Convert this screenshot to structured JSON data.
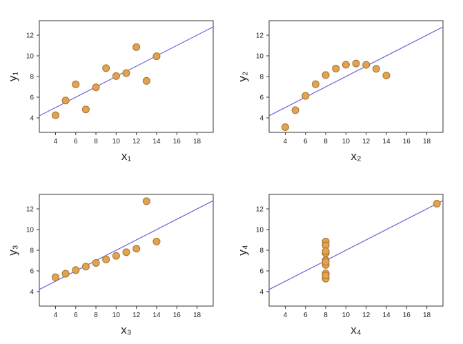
{
  "chart_data": [
    {
      "type": "scatter",
      "xlabel": "x₁",
      "ylabel": "y₁",
      "x": [
        10,
        8,
        13,
        9,
        11,
        14,
        6,
        4,
        12,
        7,
        5
      ],
      "y": [
        8.04,
        6.95,
        7.58,
        8.81,
        8.33,
        9.96,
        7.24,
        4.26,
        10.84,
        4.82,
        5.68
      ],
      "xlim": [
        2.4,
        19.6
      ],
      "ylim": [
        2.6,
        13.4
      ],
      "xticks": [
        4,
        6,
        8,
        10,
        12,
        14,
        16,
        18
      ],
      "yticks": [
        4,
        6,
        8,
        10,
        12
      ],
      "color": "#e0a352",
      "line_color": "#6b63d8"
    },
    {
      "type": "scatter",
      "xlabel": "x₂",
      "ylabel": "y₂",
      "x": [
        10,
        8,
        13,
        9,
        11,
        14,
        6,
        4,
        12,
        7,
        5
      ],
      "y": [
        9.14,
        8.14,
        8.74,
        8.77,
        9.26,
        8.1,
        6.13,
        3.1,
        9.13,
        7.26,
        4.74
      ],
      "xlim": [
        2.4,
        19.6
      ],
      "ylim": [
        2.6,
        13.4
      ],
      "xticks": [
        4,
        6,
        8,
        10,
        12,
        14,
        16,
        18
      ],
      "yticks": [
        4,
        6,
        8,
        10,
        12
      ],
      "color": "#e0a352",
      "line_color": "#6b63d8"
    },
    {
      "type": "scatter",
      "xlabel": "x₃",
      "ylabel": "y₃",
      "x": [
        10,
        8,
        13,
        9,
        11,
        14,
        6,
        4,
        12,
        7,
        5
      ],
      "y": [
        7.46,
        6.77,
        12.74,
        7.11,
        7.81,
        8.84,
        6.08,
        5.39,
        8.15,
        6.42,
        5.73
      ],
      "xlim": [
        2.4,
        19.6
      ],
      "ylim": [
        2.6,
        13.4
      ],
      "xticks": [
        4,
        6,
        8,
        10,
        12,
        14,
        16,
        18
      ],
      "yticks": [
        4,
        6,
        8,
        10,
        12
      ],
      "color": "#e0a352",
      "line_color": "#6b63d8"
    },
    {
      "type": "scatter",
      "xlabel": "x₄",
      "ylabel": "y₄",
      "x": [
        8,
        8,
        8,
        8,
        8,
        8,
        8,
        19,
        8,
        8,
        8
      ],
      "y": [
        6.58,
        5.76,
        7.71,
        8.84,
        8.47,
        7.04,
        5.25,
        12.5,
        5.56,
        7.91,
        6.89
      ],
      "xlim": [
        2.4,
        19.6
      ],
      "ylim": [
        2.6,
        13.4
      ],
      "xticks": [
        4,
        6,
        8,
        10,
        12,
        14,
        16,
        18
      ],
      "yticks": [
        4,
        6,
        8,
        10,
        12
      ],
      "color": "#e0a352",
      "line_color": "#6b63d8"
    }
  ]
}
